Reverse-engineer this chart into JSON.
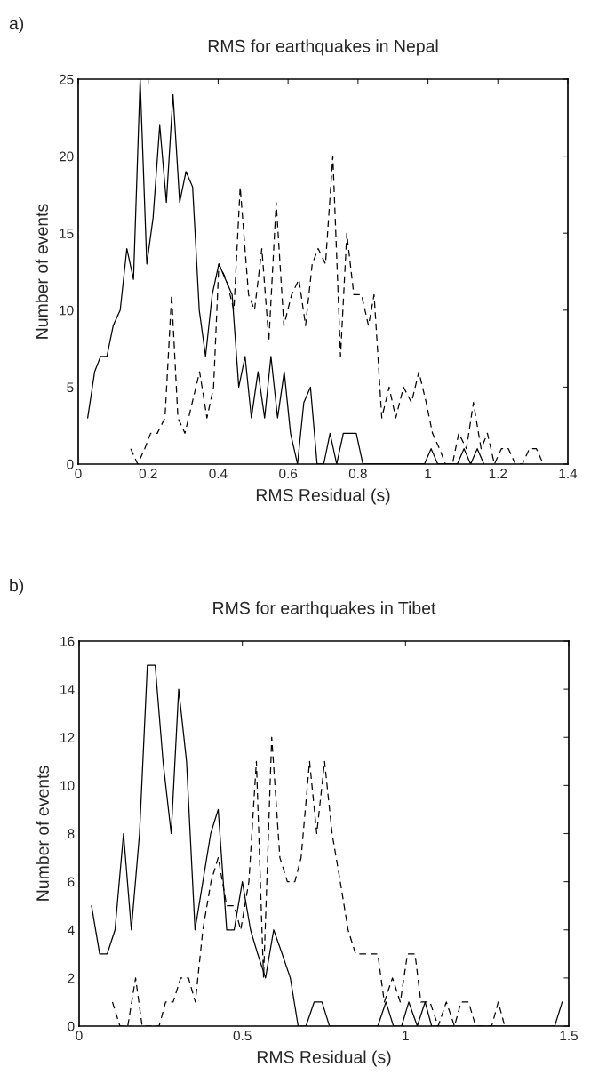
{
  "chart_data": [
    {
      "type": "line",
      "title": "RMS for earthquakes in Nepal",
      "xlabel": "RMS Residual (s)",
      "ylabel": "Number of events",
      "annotations": [
        "a)"
      ],
      "xlim": [
        0,
        1.4
      ],
      "xticks": [
        0,
        0.2,
        0.4,
        0.6,
        0.8,
        1,
        1.2,
        1.4
      ],
      "ylim": [
        0,
        25
      ],
      "yticks": [
        0,
        5,
        10,
        15,
        20,
        25
      ],
      "grid": false,
      "legend": false,
      "series": [
        {
          "color": "#000000",
          "line_style": "solid",
          "x": [
            0.027,
            0.047,
            0.064,
            0.082,
            0.1,
            0.12,
            0.139,
            0.158,
            0.177,
            0.196,
            0.214,
            0.233,
            0.252,
            0.271,
            0.29,
            0.308,
            0.327,
            0.346,
            0.364,
            0.383,
            0.402,
            0.421,
            0.44,
            0.459,
            0.477,
            0.495,
            0.514,
            0.533,
            0.551,
            0.57,
            0.589,
            0.607,
            0.627,
            0.645,
            0.664,
            0.683,
            0.702,
            0.72,
            0.739,
            0.758,
            0.777,
            0.795,
            0.814,
            0.99,
            1.009,
            1.028,
            1.084,
            1.103,
            1.122,
            1.141,
            1.16
          ],
          "values": [
            3,
            6,
            7,
            7,
            9,
            10,
            14,
            12,
            25,
            13,
            16,
            22,
            17,
            24,
            17,
            19,
            18,
            10,
            7,
            11,
            13,
            12,
            11,
            5,
            7,
            3,
            6,
            3,
            7,
            3,
            6,
            2,
            0,
            4,
            5,
            0,
            0,
            2,
            0,
            2,
            2,
            2,
            0,
            0,
            1,
            0,
            0,
            1,
            0,
            1,
            0
          ]
        },
        {
          "color": "#000000",
          "line_style": "dashed",
          "x": [
            0.15,
            0.17,
            0.19,
            0.207,
            0.226,
            0.248,
            0.267,
            0.285,
            0.305,
            0.326,
            0.347,
            0.368,
            0.387,
            0.402,
            0.423,
            0.445,
            0.463,
            0.487,
            0.504,
            0.525,
            0.545,
            0.566,
            0.588,
            0.61,
            0.631,
            0.65,
            0.669,
            0.686,
            0.707,
            0.728,
            0.75,
            0.768,
            0.788,
            0.81,
            0.83,
            0.846,
            0.868,
            0.889,
            0.908,
            0.93,
            0.953,
            0.974,
            0.995,
            1.013,
            1.033,
            1.05,
            1.07,
            1.088,
            1.11,
            1.13,
            1.152,
            1.17,
            1.19,
            1.21,
            1.23,
            1.25,
            1.27,
            1.29,
            1.31,
            1.33
          ],
          "values": [
            1,
            0,
            1,
            2,
            2,
            3,
            11,
            3,
            2,
            4,
            6,
            3,
            5,
            13,
            12,
            10,
            18,
            11,
            10,
            14,
            8,
            17,
            9,
            11,
            12,
            9,
            13,
            14,
            13,
            20,
            7,
            15,
            11,
            11,
            9,
            11,
            3,
            5,
            3,
            5,
            4,
            6,
            4,
            2,
            1,
            0,
            0,
            2,
            1,
            4,
            1,
            2,
            0,
            1,
            1,
            0,
            0,
            1,
            1,
            0
          ]
        }
      ]
    },
    {
      "type": "line",
      "title": "RMS for earthquakes in Tibet",
      "xlabel": "RMS Residual (s)",
      "ylabel": "Number of events",
      "annotations": [
        "b)"
      ],
      "xlim": [
        0,
        1.5
      ],
      "xticks": [
        0,
        0.5,
        1,
        1.5
      ],
      "ylim": [
        0,
        16
      ],
      "yticks": [
        0,
        2,
        4,
        6,
        8,
        10,
        12,
        14,
        16
      ],
      "grid": false,
      "legend": false,
      "series": [
        {
          "color": "#000000",
          "line_style": "solid",
          "x": [
            0.038,
            0.063,
            0.086,
            0.11,
            0.136,
            0.16,
            0.185,
            0.209,
            0.233,
            0.257,
            0.282,
            0.305,
            0.329,
            0.355,
            0.379,
            0.403,
            0.426,
            0.452,
            0.475,
            0.5,
            0.525,
            0.547,
            0.571,
            0.596,
            0.622,
            0.647,
            0.671,
            0.695,
            0.72,
            0.744,
            0.767,
            0.915,
            0.94,
            0.963,
            0.988,
            1.01,
            1.036,
            1.06,
            1.08,
            1.457,
            1.48
          ],
          "values": [
            5,
            3,
            3,
            4,
            8,
            4,
            8,
            15,
            15,
            11,
            8,
            14,
            11,
            4,
            6,
            8,
            9,
            4,
            4,
            6,
            4,
            3,
            2,
            4,
            3,
            2,
            0,
            0,
            1,
            1,
            0,
            0,
            1,
            0,
            0,
            1,
            0,
            1,
            0,
            0,
            1
          ]
        },
        {
          "color": "#000000",
          "line_style": "dashed",
          "x": [
            0.102,
            0.125,
            0.149,
            0.173,
            0.193,
            0.22,
            0.245,
            0.265,
            0.288,
            0.311,
            0.335,
            0.356,
            0.379,
            0.404,
            0.426,
            0.452,
            0.475,
            0.495,
            0.52,
            0.543,
            0.565,
            0.59,
            0.615,
            0.638,
            0.661,
            0.68,
            0.706,
            0.728,
            0.752,
            0.775,
            0.8,
            0.824,
            0.847,
            0.87,
            0.893,
            0.915,
            0.935,
            0.96,
            0.984,
            1.006,
            1.029,
            1.047,
            1.075,
            1.1,
            1.125,
            1.15,
            1.17,
            1.193,
            1.215,
            1.264,
            1.284,
            1.304
          ],
          "values": [
            1,
            0,
            0,
            2,
            0,
            0,
            0,
            1,
            1,
            2,
            2,
            1,
            4,
            6,
            7,
            5,
            5,
            4,
            6,
            11,
            2,
            12,
            7,
            6,
            6,
            7,
            11,
            8,
            11,
            8,
            6,
            4,
            3,
            3,
            3,
            3,
            1,
            2,
            1,
            3,
            3,
            1,
            1,
            0,
            1,
            0,
            1,
            1,
            0,
            0,
            1,
            0
          ]
        }
      ]
    }
  ]
}
